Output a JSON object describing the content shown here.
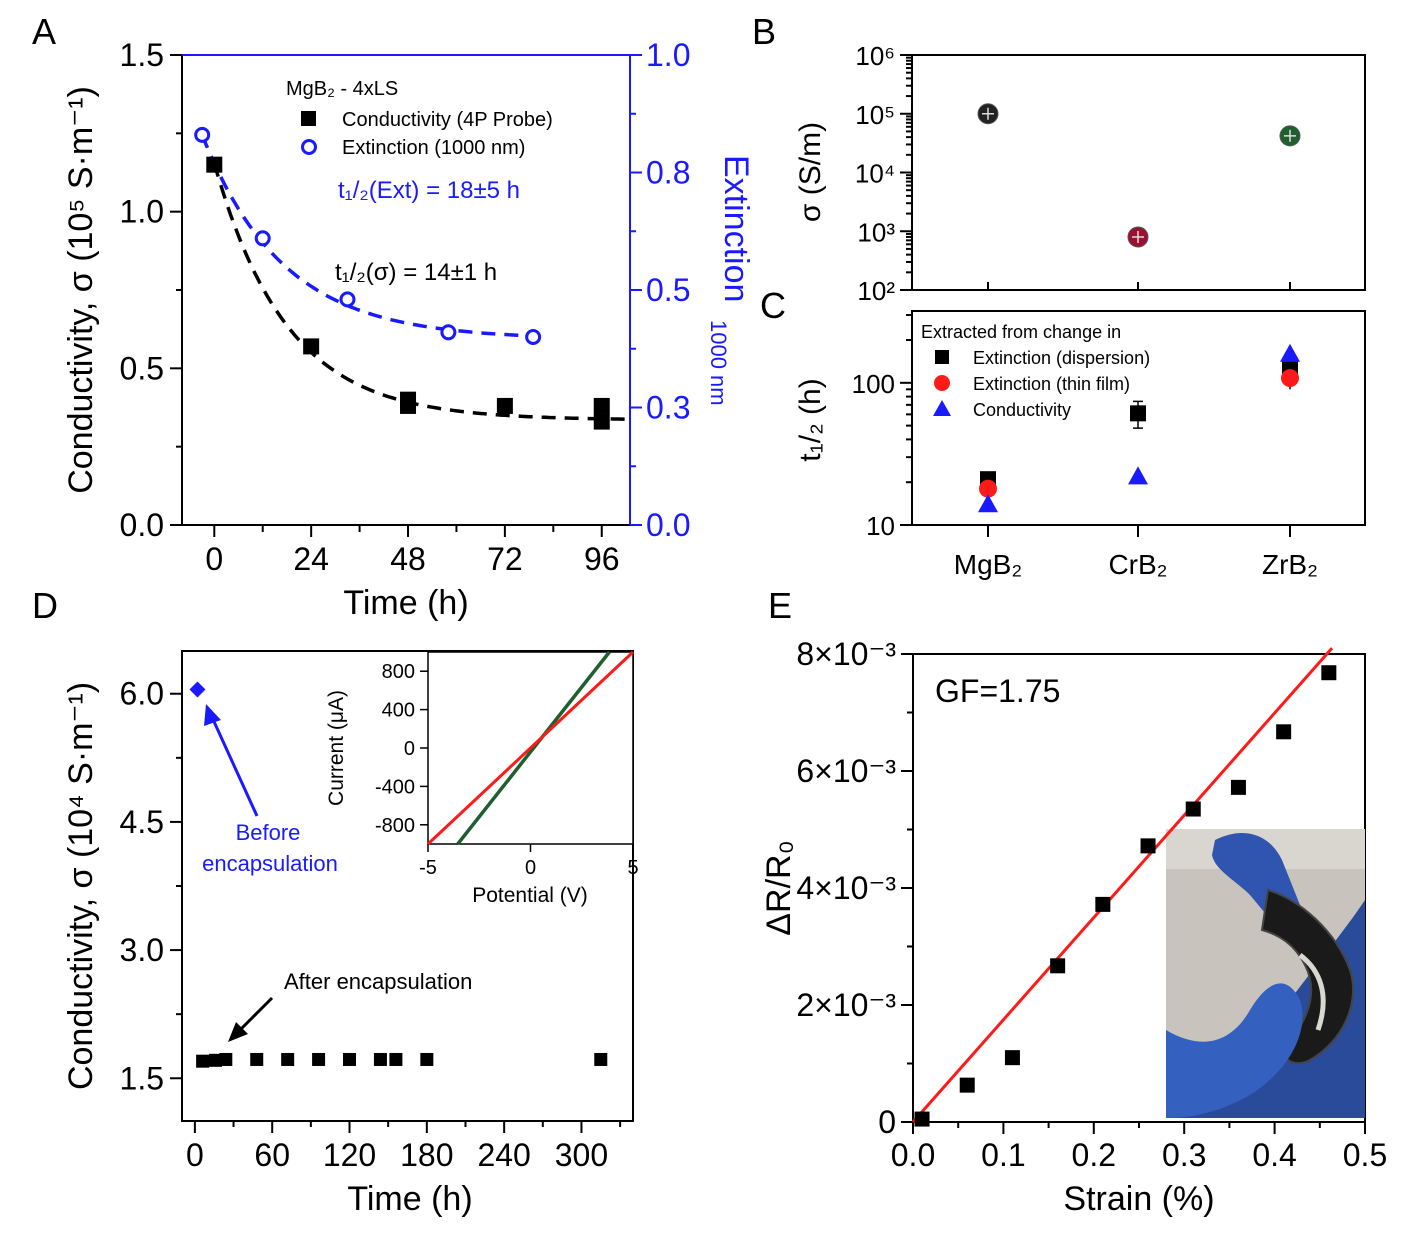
{
  "panels": {
    "A": "A",
    "B": "B",
    "C": "C",
    "D": "D",
    "E": "E"
  },
  "colors": {
    "black": "#000000",
    "blue": "#1a1aff",
    "red": "#ff1a1a",
    "green": "#1f5f2f",
    "maroon": "#9a1030",
    "grey_black": "#222222"
  },
  "chart_data": [
    {
      "panel": "A",
      "type": "scatter",
      "xlabel": "Time (h)",
      "ylabel": "Conductivity, σ (10⁵ S·m⁻¹)",
      "y2label": "Extinction",
      "y2label_sub": "1000 nm",
      "xlim": [
        -8,
        103
      ],
      "ylim": [
        0,
        1.5
      ],
      "y2lim": [
        0,
        1.0
      ],
      "xticks": [
        "0",
        "24",
        "48",
        "72",
        "96"
      ],
      "yticks": [
        "0.0",
        "0.5",
        "1.0",
        "1.5"
      ],
      "y2ticks": [
        "0.0",
        "0.3",
        "0.5",
        "0.8",
        "1.0"
      ],
      "legend_title": "MgB₂ - 4xLS",
      "series": [
        {
          "name": "Conductivity (4P Probe)",
          "marker": "square",
          "axis": "left",
          "x": [
            0,
            24,
            48,
            48,
            72,
            96,
            96
          ],
          "y": [
            1.15,
            0.57,
            0.4,
            0.38,
            0.38,
            0.38,
            0.33
          ]
        },
        {
          "name": "Extinction (1000 nm)",
          "marker": "open-circle",
          "axis": "right",
          "x": [
            -3,
            12,
            33,
            58,
            79
          ],
          "y": [
            0.83,
            0.61,
            0.48,
            0.41,
            0.4
          ]
        }
      ],
      "annotations": [
        "t₁/₂(Ext) = 18±5 h",
        "t₁/₂(σ) = 14±1 h"
      ]
    },
    {
      "panel": "B",
      "type": "scatter",
      "ylabel": "σ (S/m)",
      "yscale": "log",
      "ylim": [
        100,
        1000000
      ],
      "yticks": [
        "10²",
        "10³",
        "10⁴",
        "10⁵",
        "10⁶"
      ],
      "categories": [
        "MgB₂",
        "CrB₂",
        "ZrB₂"
      ],
      "values": [
        100000,
        800,
        42000
      ]
    },
    {
      "panel": "C",
      "type": "scatter",
      "ylabel": "t₁/₂ (h)",
      "yscale": "log",
      "ylim": [
        10,
        320
      ],
      "yticks": [
        "10",
        "100"
      ],
      "categories": [
        "MgB₂",
        "CrB₂",
        "ZrB₂"
      ],
      "legend_title": "Extracted from change in",
      "series": [
        {
          "name": "Extinction (dispersion)",
          "marker": "square",
          "values": [
            21,
            61,
            130
          ]
        },
        {
          "name": "Extinction (thin film)",
          "marker": "circle",
          "values": [
            18,
            null,
            108
          ]
        },
        {
          "name": "Conductivity",
          "marker": "triangle",
          "values": [
            14,
            22,
            160
          ]
        }
      ]
    },
    {
      "panel": "D",
      "type": "scatter",
      "xlabel": "Time (h)",
      "ylabel": "Conductivity, σ (10⁴ S·m⁻¹)",
      "xlim": [
        -10,
        340
      ],
      "ylim": [
        1.0,
        6.5
      ],
      "xticks": [
        "0",
        "60",
        "120",
        "180",
        "240",
        "300"
      ],
      "yticks": [
        "1.5",
        "3.0",
        "4.5",
        "6.0"
      ],
      "series": [
        {
          "name": "Before encapsulation",
          "marker": "diamond",
          "x": [
            2
          ],
          "y": [
            6.05
          ]
        },
        {
          "name": "After encapsulation",
          "marker": "square",
          "x": [
            6,
            16,
            24,
            48,
            72,
            96,
            120,
            144,
            156,
            180,
            315
          ],
          "y": [
            1.7,
            1.71,
            1.72,
            1.72,
            1.72,
            1.72,
            1.72,
            1.72,
            1.72,
            1.72,
            1.72
          ]
        }
      ],
      "annotations": [
        "Before",
        "encapsulation",
        "After encapsulation"
      ]
    },
    {
      "panel": "D-inset",
      "type": "line",
      "xlabel": "Potential (V)",
      "ylabel": "Current (μA)",
      "xlim": [
        -5,
        5
      ],
      "ylim": [
        -1000,
        1000
      ],
      "xticks": [
        "-5",
        "0",
        "5"
      ],
      "yticks": [
        "-800",
        "-400",
        "0",
        "400",
        "800"
      ],
      "series": [
        {
          "name": "",
          "color": "green",
          "x": [
            -4,
            4
          ],
          "y": [
            -1040,
            1040
          ]
        },
        {
          "name": "",
          "color": "red",
          "x": [
            -5,
            5
          ],
          "y": [
            -1020,
            1020
          ]
        }
      ]
    },
    {
      "panel": "E",
      "type": "scatter",
      "xlabel": "Strain (%)",
      "ylabel": "ΔR/R₀",
      "xlim": [
        0,
        0.5
      ],
      "ylim": [
        0,
        0.008
      ],
      "xticks": [
        "0.0",
        "0.1",
        "0.2",
        "0.3",
        "0.4",
        "0.5"
      ],
      "yticks": [
        "0",
        "2×10⁻³",
        "4×10⁻³",
        "6×10⁻³",
        "8×10⁻³"
      ],
      "x": [
        0.01,
        0.06,
        0.11,
        0.16,
        0.21,
        0.26,
        0.31,
        0.36,
        0.41,
        0.46
      ],
      "y": [
        5e-05,
        0.00063,
        0.0011,
        0.00267,
        0.00372,
        0.00472,
        0.00535,
        0.00572,
        0.00667,
        0.00768
      ],
      "fit": {
        "name": "",
        "x": [
          0,
          0.4635
        ],
        "y": [
          0,
          0.0081
        ]
      },
      "annotations": [
        "GF=1.75"
      ]
    }
  ]
}
